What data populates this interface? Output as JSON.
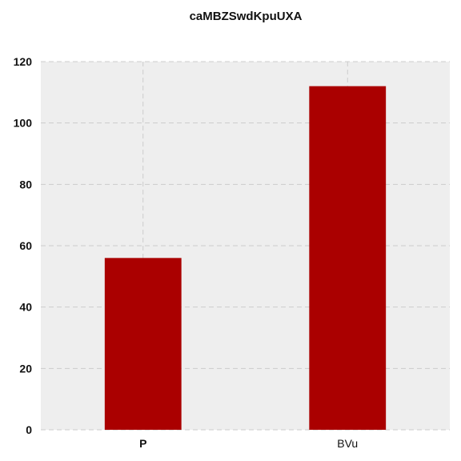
{
  "chart_data": {
    "type": "bar",
    "title": "caMBZSwdKpuUXA",
    "xlabel": "",
    "ylabel": "",
    "categories": [
      "P",
      "BVu"
    ],
    "values": [
      56,
      112
    ],
    "ylim": [
      0,
      120
    ],
    "yticks": [
      0,
      20,
      40,
      60,
      80,
      100,
      120
    ],
    "grid": true,
    "bar_color": "#aa0000",
    "background_color": "#eeeeee",
    "grid_color": "#cccccc"
  }
}
